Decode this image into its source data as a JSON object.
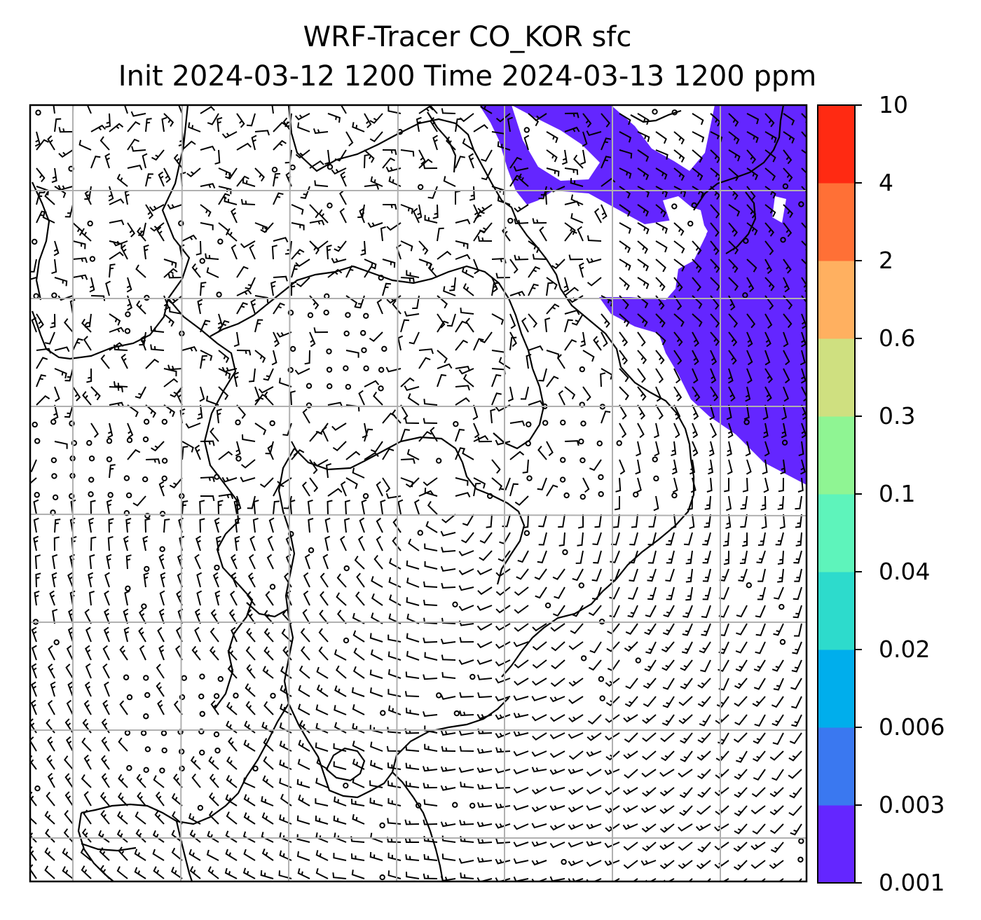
{
  "title": {
    "line1": "WRF-Tracer CO_KOR sfc",
    "line2": "Init 2024-03-12 1200 Time 2024-03-13 1200 ppm"
  },
  "map": {
    "field": "CO_KOR tracer concentration",
    "units": "ppm",
    "fill_color": "#6426ff",
    "gridlines": true,
    "gridline_color": "#b0b0b0",
    "wind_barbs": true
  },
  "colorbar": {
    "position": "right",
    "ticks": [
      "0.001",
      "0.003",
      "0.006",
      "0.02",
      "0.04",
      "0.1",
      "0.3",
      "0.6",
      "2",
      "4",
      "10"
    ],
    "colors": [
      "#6426ff",
      "#3a78f0",
      "#00aeec",
      "#2ddbcc",
      "#5ef4bb",
      "#8ff593",
      "#cfe080",
      "#ffb060",
      "#ff7036",
      "#ff2a12"
    ]
  }
}
